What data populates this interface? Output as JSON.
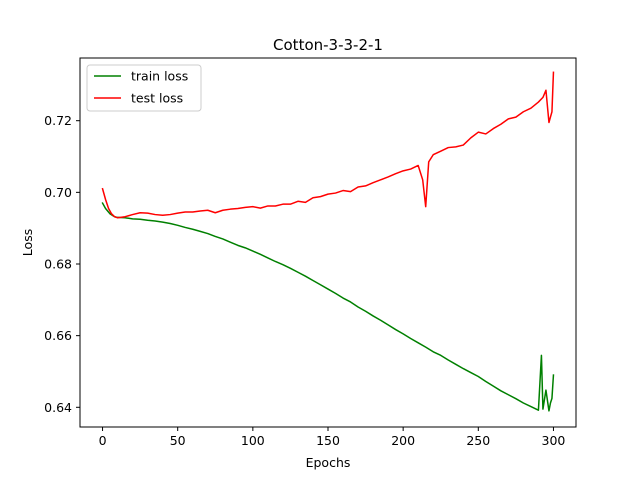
{
  "chart_data": {
    "type": "line",
    "title": "Cotton-3-3-2-1",
    "xlabel": "Epochs",
    "ylabel": "Loss",
    "xlim": [
      -15,
      315
    ],
    "ylim": [
      0.6345,
      0.7375
    ],
    "xticks": [
      0,
      50,
      100,
      150,
      200,
      250,
      300
    ],
    "xtick_labels": [
      "0",
      "50",
      "100",
      "150",
      "200",
      "250",
      "300"
    ],
    "yticks": [
      0.64,
      0.66,
      0.68,
      0.7,
      0.72
    ],
    "ytick_labels": [
      "0.64",
      "0.66",
      "0.68",
      "0.70",
      "0.72"
    ],
    "grid": false,
    "legend": "upper left",
    "series": [
      {
        "name": "train loss",
        "color": "#008000",
        "points": [
          [
            0,
            0.697
          ],
          [
            2,
            0.6955
          ],
          [
            5,
            0.694
          ],
          [
            8,
            0.6932
          ],
          [
            10,
            0.693
          ],
          [
            15,
            0.6929
          ],
          [
            20,
            0.6926
          ],
          [
            25,
            0.6925
          ],
          [
            30,
            0.6922
          ],
          [
            35,
            0.692
          ],
          [
            40,
            0.6917
          ],
          [
            45,
            0.6913
          ],
          [
            50,
            0.6908
          ],
          [
            55,
            0.6902
          ],
          [
            60,
            0.6897
          ],
          [
            65,
            0.6891
          ],
          [
            70,
            0.6885
          ],
          [
            75,
            0.6877
          ],
          [
            80,
            0.687
          ],
          [
            85,
            0.6861
          ],
          [
            90,
            0.6852
          ],
          [
            95,
            0.6845
          ],
          [
            100,
            0.6836
          ],
          [
            105,
            0.6827
          ],
          [
            110,
            0.6817
          ],
          [
            115,
            0.6807
          ],
          [
            120,
            0.6798
          ],
          [
            125,
            0.6788
          ],
          [
            130,
            0.6777
          ],
          [
            135,
            0.6766
          ],
          [
            140,
            0.6754
          ],
          [
            145,
            0.6742
          ],
          [
            150,
            0.673
          ],
          [
            155,
            0.6718
          ],
          [
            160,
            0.6705
          ],
          [
            165,
            0.6694
          ],
          [
            170,
            0.668
          ],
          [
            175,
            0.6668
          ],
          [
            180,
            0.6655
          ],
          [
            185,
            0.6643
          ],
          [
            190,
            0.663
          ],
          [
            195,
            0.6617
          ],
          [
            200,
            0.6605
          ],
          [
            205,
            0.6592
          ],
          [
            210,
            0.658
          ],
          [
            215,
            0.6568
          ],
          [
            220,
            0.6555
          ],
          [
            225,
            0.6545
          ],
          [
            230,
            0.6532
          ],
          [
            235,
            0.652
          ],
          [
            240,
            0.6508
          ],
          [
            245,
            0.6497
          ],
          [
            250,
            0.6486
          ],
          [
            255,
            0.6472
          ],
          [
            260,
            0.6459
          ],
          [
            265,
            0.6446
          ],
          [
            270,
            0.6435
          ],
          [
            275,
            0.6424
          ],
          [
            280,
            0.6412
          ],
          [
            285,
            0.6402
          ],
          [
            290,
            0.6392
          ],
          [
            292,
            0.6545
          ],
          [
            293,
            0.6395
          ],
          [
            295,
            0.6448
          ],
          [
            297,
            0.639
          ],
          [
            298,
            0.6412
          ],
          [
            299,
            0.6425
          ],
          [
            300,
            0.649
          ]
        ]
      },
      {
        "name": "test loss",
        "color": "#ff0000",
        "points": [
          [
            0,
            0.701
          ],
          [
            2,
            0.698
          ],
          [
            4,
            0.6955
          ],
          [
            6,
            0.694
          ],
          [
            8,
            0.6932
          ],
          [
            10,
            0.6929
          ],
          [
            12,
            0.693
          ],
          [
            15,
            0.6932
          ],
          [
            20,
            0.6938
          ],
          [
            25,
            0.6943
          ],
          [
            30,
            0.6942
          ],
          [
            35,
            0.6938
          ],
          [
            40,
            0.6936
          ],
          [
            45,
            0.6938
          ],
          [
            50,
            0.6942
          ],
          [
            55,
            0.6945
          ],
          [
            60,
            0.6945
          ],
          [
            65,
            0.6948
          ],
          [
            70,
            0.695
          ],
          [
            75,
            0.6943
          ],
          [
            80,
            0.695
          ],
          [
            85,
            0.6953
          ],
          [
            90,
            0.6955
          ],
          [
            95,
            0.6958
          ],
          [
            100,
            0.696
          ],
          [
            105,
            0.6956
          ],
          [
            110,
            0.6962
          ],
          [
            115,
            0.6962
          ],
          [
            120,
            0.6967
          ],
          [
            125,
            0.6967
          ],
          [
            130,
            0.6975
          ],
          [
            135,
            0.6972
          ],
          [
            140,
            0.6985
          ],
          [
            145,
            0.6988
          ],
          [
            150,
            0.6995
          ],
          [
            155,
            0.6998
          ],
          [
            160,
            0.7005
          ],
          [
            165,
            0.7002
          ],
          [
            170,
            0.7015
          ],
          [
            175,
            0.7018
          ],
          [
            180,
            0.7027
          ],
          [
            185,
            0.7035
          ],
          [
            190,
            0.7043
          ],
          [
            195,
            0.7052
          ],
          [
            200,
            0.706
          ],
          [
            205,
            0.7065
          ],
          [
            210,
            0.7075
          ],
          [
            213,
            0.7035
          ],
          [
            215,
            0.696
          ],
          [
            217,
            0.7085
          ],
          [
            220,
            0.7105
          ],
          [
            225,
            0.7115
          ],
          [
            230,
            0.7125
          ],
          [
            235,
            0.7127
          ],
          [
            240,
            0.7132
          ],
          [
            245,
            0.7152
          ],
          [
            250,
            0.7168
          ],
          [
            255,
            0.7163
          ],
          [
            260,
            0.7178
          ],
          [
            265,
            0.719
          ],
          [
            270,
            0.7205
          ],
          [
            275,
            0.721
          ],
          [
            280,
            0.7225
          ],
          [
            285,
            0.7235
          ],
          [
            290,
            0.7252
          ],
          [
            293,
            0.7265
          ],
          [
            295,
            0.7285
          ],
          [
            297,
            0.7195
          ],
          [
            298,
            0.721
          ],
          [
            299,
            0.7225
          ],
          [
            300,
            0.7335
          ]
        ]
      }
    ]
  }
}
